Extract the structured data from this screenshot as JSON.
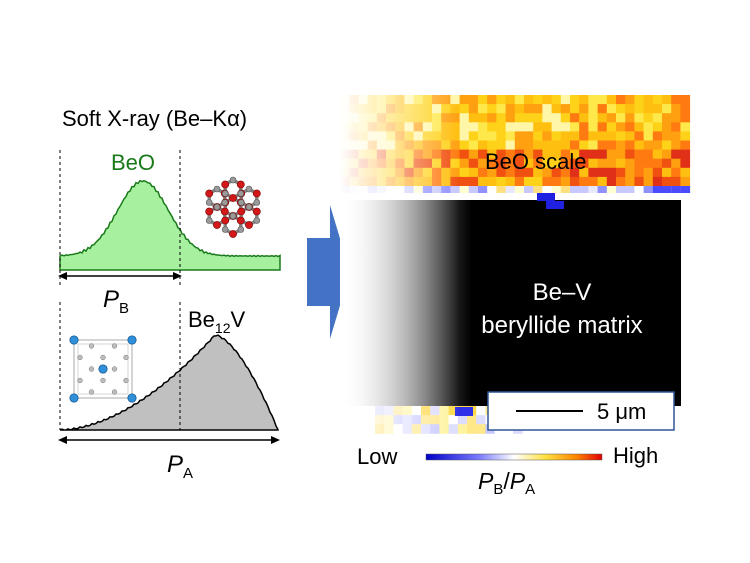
{
  "title": "Soft X-ray (Be–Kα)",
  "beo_label": "BeO",
  "be12v_label": {
    "main": "Be",
    "sub": "12",
    "tail": "V"
  },
  "pb_label": {
    "main": "P",
    "sub": "B"
  },
  "pa_label": {
    "main": "P",
    "sub": "A"
  },
  "map": {
    "beo_scale": "BeO scale",
    "matrix_line1": "Be–V",
    "matrix_line2": "beryllide matrix",
    "scalebar": "5 μm"
  },
  "colorbar": {
    "low": "Low",
    "high": "High",
    "ratio": {
      "p1": "P",
      "s1": "B",
      "slash": "/",
      "p2": "P",
      "s2": "A"
    }
  },
  "colors": {
    "beo_green": "#1a7a1a",
    "beo_fill": "#a6f0a0",
    "be12v_fill": "#c0c0c0",
    "arrow_blue": "#4472c4",
    "matrix_black": "#000000"
  }
}
